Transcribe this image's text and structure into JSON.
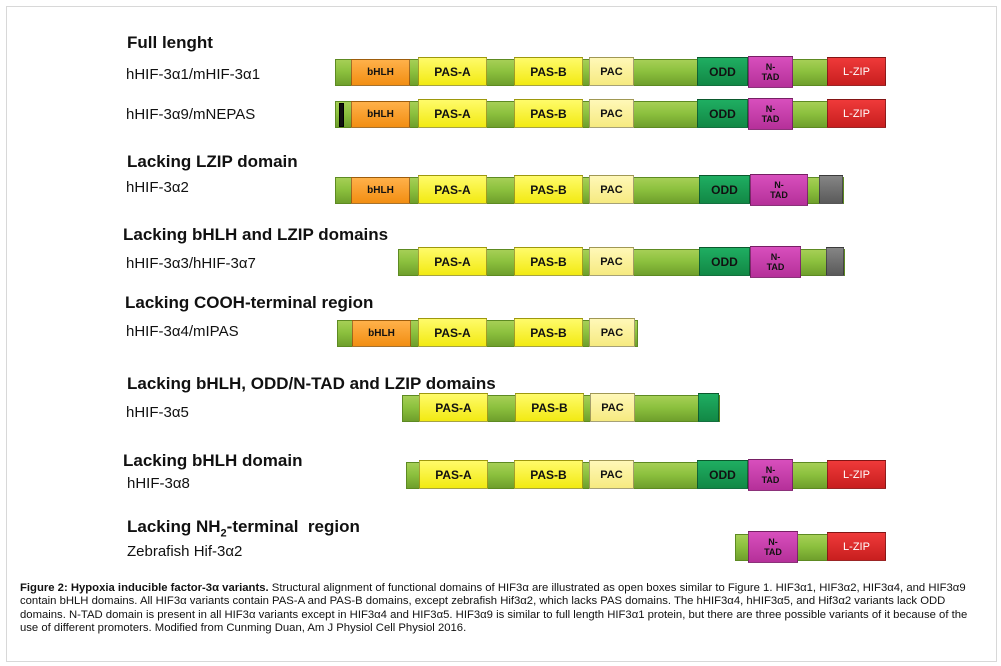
{
  "sections": [
    {
      "heading": "Full lenght",
      "variants": [
        {
          "label": "hHIF-3α1/mHIF-3α1",
          "domains": [
            {
              "type": "bhlh",
              "text": "bHLH"
            },
            {
              "type": "pas",
              "text": "PAS-A"
            },
            {
              "type": "pas",
              "text": "PAS-B"
            },
            {
              "type": "pac",
              "text": "PAC"
            },
            {
              "type": "odd",
              "text": "ODD"
            },
            {
              "type": "ntad",
              "text": "N-\nTAD"
            },
            {
              "type": "lzip",
              "text": "L-ZIP"
            }
          ]
        },
        {
          "label": "hHIF-3α9/mNEPAS",
          "domains": [
            {
              "type": "black",
              "text": ""
            },
            {
              "type": "bhlh",
              "text": "bHLH"
            },
            {
              "type": "pas",
              "text": "PAS-A"
            },
            {
              "type": "pas",
              "text": "PAS-B"
            },
            {
              "type": "pac",
              "text": "PAC"
            },
            {
              "type": "odd",
              "text": "ODD"
            },
            {
              "type": "ntad",
              "text": "N-\nTAD"
            },
            {
              "type": "lzip",
              "text": "L-ZIP"
            }
          ]
        }
      ]
    },
    {
      "heading": "Lacking LZIP domain",
      "variants": [
        {
          "label": "hHIF-3α2",
          "domains": [
            {
              "type": "bhlh",
              "text": "bHLH"
            },
            {
              "type": "pas",
              "text": "PAS-A"
            },
            {
              "type": "pas",
              "text": "PAS-B"
            },
            {
              "type": "pac",
              "text": "PAC"
            },
            {
              "type": "odd",
              "text": "ODD"
            },
            {
              "type": "ntad",
              "text": "N-\nTAD"
            },
            {
              "type": "gray",
              "text": ""
            }
          ]
        }
      ]
    },
    {
      "heading": "Lacking bHLH and LZIP domains",
      "variants": [
        {
          "label": "hHIF-3α3/hHIF-3α7",
          "domains": [
            {
              "type": "pas",
              "text": "PAS-A"
            },
            {
              "type": "pas",
              "text": "PAS-B"
            },
            {
              "type": "pac",
              "text": "PAC"
            },
            {
              "type": "odd",
              "text": "ODD"
            },
            {
              "type": "ntad",
              "text": "N-\nTAD"
            },
            {
              "type": "gray",
              "text": ""
            }
          ]
        }
      ]
    },
    {
      "heading": "Lacking COOH-terminal region",
      "variants": [
        {
          "label": "hHIF-3α4/mIPAS",
          "domains": [
            {
              "type": "bhlh",
              "text": "bHLH"
            },
            {
              "type": "pas",
              "text": "PAS-A"
            },
            {
              "type": "pas",
              "text": "PAS-B"
            },
            {
              "type": "pac",
              "text": "PAC"
            }
          ]
        }
      ]
    },
    {
      "heading": "Lacking bHLH, ODD/N-TAD and LZIP domains",
      "variants": [
        {
          "label": "hHIF-3α5",
          "domains": [
            {
              "type": "pas",
              "text": "PAS-A"
            },
            {
              "type": "pas",
              "text": "PAS-B"
            },
            {
              "type": "pac",
              "text": "PAC"
            },
            {
              "type": "odd",
              "text": ""
            }
          ]
        }
      ]
    },
    {
      "heading": "Lacking bHLH domain",
      "variants": [
        {
          "label": "hHIF-3α8",
          "domains": [
            {
              "type": "pas",
              "text": "PAS-A"
            },
            {
              "type": "pas",
              "text": "PAS-B"
            },
            {
              "type": "pac",
              "text": "PAC"
            },
            {
              "type": "odd",
              "text": "ODD"
            },
            {
              "type": "ntad",
              "text": "N-\nTAD"
            },
            {
              "type": "lzip",
              "text": "L-ZIP"
            }
          ]
        }
      ]
    },
    {
      "heading_prefix": "Lacking NH",
      "heading_sub": "2",
      "heading_suffix": "-terminal  region",
      "variants": [
        {
          "label": "Zebrafish Hif-3α2",
          "domains": [
            {
              "type": "ntad",
              "text": "N-\nTAD"
            },
            {
              "type": "lzip",
              "text": "L-ZIP"
            }
          ]
        }
      ]
    }
  ],
  "caption": {
    "title": "Figure 2: Hypoxia inducible factor-3α variants.",
    "body": " Structural alignment of functional domains of HIF3α are illustrated as open boxes similar to Figure 1. HIF3α1, HIF3α2, HIF3α4, and HIF3α9 contain bHLH domains. All HIF3α variants contain PAS-A and PAS-B domains, except zebrafish Hif3α2, which lacks PAS domains. The hHIF3α4, hHIF3α5, and Hif3α2 variants lack ODD domains. N-TAD domain is present in all HIF3α variants except in HIF3α4 and HIF3α5. HIF3α9 is similar to full length HIF3α1 protein, but there are three possible variants of it because of the use of different promoters. Modified from Cunming Duan, Am J Physiol Cell Physiol 2016."
  },
  "colors": {
    "backbone": "#8cc13e",
    "bhlh": "#f28e12",
    "pas": "#f2ea12",
    "pac": "#f6ea80",
    "odd": "#128845",
    "ntad": "#b53099",
    "lzip": "#c81f1f",
    "gray": "#6a6a6a"
  }
}
